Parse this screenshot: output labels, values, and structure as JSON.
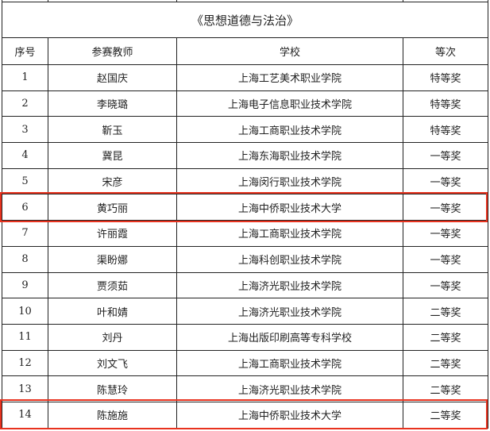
{
  "title": "《思想道德与法治》",
  "headers": [
    "序号",
    "参赛教师",
    "学校",
    "等次"
  ],
  "highlight_color": "#e8321e",
  "rows": [
    {
      "no": "1",
      "teacher": "赵国庆",
      "school": "上海工艺美术职业学院",
      "award": "特等奖",
      "highlighted": false
    },
    {
      "no": "2",
      "teacher": "李晓璐",
      "school": "上海电子信息职业技术学院",
      "award": "特等奖",
      "highlighted": false
    },
    {
      "no": "3",
      "teacher": "靳玉",
      "school": "上海工商职业技术学院",
      "award": "特等奖",
      "highlighted": false
    },
    {
      "no": "4",
      "teacher": "冀昆",
      "school": "上海东海职业技术学院",
      "award": "一等奖",
      "highlighted": false
    },
    {
      "no": "5",
      "teacher": "宋彦",
      "school": "上海闵行职业技术学院",
      "award": "一等奖",
      "highlighted": false
    },
    {
      "no": "6",
      "teacher": "黄巧丽",
      "school": "上海中侨职业技术大学",
      "award": "一等奖",
      "highlighted": true
    },
    {
      "no": "7",
      "teacher": "许丽霞",
      "school": "上海工商职业技术学院",
      "award": "一等奖",
      "highlighted": false
    },
    {
      "no": "8",
      "teacher": "渠盼娜",
      "school": "上海科创职业技术学院",
      "award": "一等奖",
      "highlighted": false
    },
    {
      "no": "9",
      "teacher": "贾须茹",
      "school": "上海济光职业技术学院",
      "award": "一等奖",
      "highlighted": false
    },
    {
      "no": "10",
      "teacher": "叶和婧",
      "school": "上海济光职业技术学院",
      "award": "二等奖",
      "highlighted": false
    },
    {
      "no": "11",
      "teacher": "刘丹",
      "school": "上海出版印刷高等专科学校",
      "award": "二等奖",
      "highlighted": false
    },
    {
      "no": "12",
      "teacher": "刘文飞",
      "school": "上海工商职业技术学院",
      "award": "二等奖",
      "highlighted": false
    },
    {
      "no": "13",
      "teacher": "陈慧玲",
      "school": "上海济光职业技术学院",
      "award": "二等奖",
      "highlighted": false
    },
    {
      "no": "14",
      "teacher": "陈施施",
      "school": "上海中侨职业技术大学",
      "award": "二等奖",
      "highlighted": true
    }
  ]
}
